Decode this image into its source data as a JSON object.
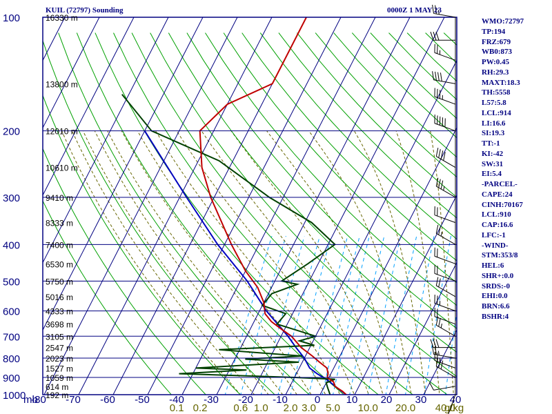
{
  "title_left": "KUIL (72797) Sounding",
  "title_right": "0000Z  1 MAY 23",
  "stats": [
    "WMO:72797",
    "TP:194",
    "FRZ:679",
    "WB0:873",
    "PW:0.45",
    "RH:29.3",
    "MAXT:18.3",
    "TH:5558",
    "L57:5.8",
    "LCL:914",
    "LI:16.6",
    "SI:19.3",
    "TT:-1",
    "KI:-42",
    "SW:31",
    "EI:5.4",
    "-PARCEL-",
    "CAPE:24",
    "CINH:70167",
    "LCL:910",
    "CAP:16.6",
    "LFC:-1",
    "-WIND-",
    "STM:353/8",
    "HEL:6",
    "SHR+:0.0",
    "SRDS:-0",
    "EHI:0.0",
    "BRN:6.6",
    "BSHR:4"
  ],
  "colors": {
    "frame": "#000080",
    "isotherm": "#000080",
    "dry_adiabat": "#00a000",
    "moist_adiabat": "#666600",
    "mixing_ratio": "#00a0ff",
    "temperature": "#c00000",
    "dewpoint": "#004000",
    "parcel": "#0000c0",
    "wind": "#000000",
    "mixlabel": "#666600"
  },
  "chart_data": {
    "type": "skew-t",
    "y_axis": {
      "label": "mb",
      "scale": "log",
      "range": [
        1000,
        100
      ],
      "ticks": [
        100,
        200,
        300,
        400,
        500,
        600,
        700,
        800,
        900,
        1000
      ]
    },
    "x_axis": {
      "unit": "C",
      "range": [
        -80,
        40
      ],
      "ticks": [
        -80,
        -70,
        -60,
        -50,
        -40,
        -30,
        -20,
        -10,
        0,
        10,
        20,
        30,
        40
      ]
    },
    "height_labels": [
      {
        "p": 100,
        "text": "16330 m"
      },
      {
        "p": 150,
        "text": "13800 m"
      },
      {
        "p": 200,
        "text": "12010 m"
      },
      {
        "p": 250,
        "text": "10610 m"
      },
      {
        "p": 300,
        "text": "9410 m"
      },
      {
        "p": 350,
        "text": "8333 m"
      },
      {
        "p": 400,
        "text": "7400 m"
      },
      {
        "p": 450,
        "text": "6530 m"
      },
      {
        "p": 500,
        "text": "5750 m"
      },
      {
        "p": 550,
        "text": "5016 m"
      },
      {
        "p": 600,
        "text": "4333 m"
      },
      {
        "p": 650,
        "text": "3698 m"
      },
      {
        "p": 700,
        "text": "3105 m"
      },
      {
        "p": 750,
        "text": "2547 m"
      },
      {
        "p": 800,
        "text": "2023 m"
      },
      {
        "p": 850,
        "text": "1527 m"
      },
      {
        "p": 900,
        "text": "1059 m"
      },
      {
        "p": 950,
        "text": "614 m"
      },
      {
        "p": 1000,
        "text": "192 m"
      }
    ],
    "mixing_ratio_labels": [
      {
        "x": 0.1,
        "text": "0.1"
      },
      {
        "x": 0.2,
        "text": "0.2"
      },
      {
        "x": 0.6,
        "text": "0.6"
      },
      {
        "x": 1.0,
        "text": "1.0"
      },
      {
        "x": 2.0,
        "text": "2.0"
      },
      {
        "x": 3.0,
        "text": "3.0"
      },
      {
        "x": 5.0,
        "text": "5.0"
      },
      {
        "x": 10.0,
        "text": "10.0"
      },
      {
        "x": 20.0,
        "text": "20.0"
      },
      {
        "x": 40.0,
        "text": "40.0"
      }
    ],
    "mixing_ratio_unit": "g/kg",
    "temperature": [
      [
        1006,
        8
      ],
      [
        980,
        6
      ],
      [
        950,
        3
      ],
      [
        925,
        2
      ],
      [
        900,
        -0.5
      ],
      [
        880,
        -0.8
      ],
      [
        850,
        -2
      ],
      [
        820,
        -5
      ],
      [
        790,
        -8
      ],
      [
        750,
        -12.5
      ],
      [
        700,
        -17
      ],
      [
        670,
        -21
      ],
      [
        640,
        -25
      ],
      [
        610,
        -28
      ],
      [
        570,
        -30
      ],
      [
        520,
        -34
      ],
      [
        470,
        -40
      ],
      [
        400,
        -48
      ],
      [
        300,
        -61
      ],
      [
        250,
        -68
      ],
      [
        200,
        -74
      ],
      [
        170,
        -70
      ],
      [
        150,
        -60
      ],
      [
        100,
        -60
      ]
    ],
    "dewpoint": [
      [
        1003,
        3
      ],
      [
        955,
        1
      ],
      [
        930,
        0
      ],
      [
        910,
        2
      ],
      [
        900,
        -10
      ],
      [
        880,
        -44
      ],
      [
        860,
        -25
      ],
      [
        850,
        -40
      ],
      [
        820,
        -11
      ],
      [
        805,
        -27
      ],
      [
        790,
        -11
      ],
      [
        760,
        -36
      ],
      [
        740,
        -9
      ],
      [
        720,
        -14
      ],
      [
        700,
        -10
      ],
      [
        680,
        -15
      ],
      [
        650,
        -23
      ],
      [
        610,
        -22
      ],
      [
        580,
        -30
      ],
      [
        540,
        -29
      ],
      [
        510,
        -23
      ],
      [
        500,
        -28
      ],
      [
        450,
        -23
      ],
      [
        400,
        -18
      ],
      [
        350,
        -28
      ],
      [
        300,
        -44
      ],
      [
        240,
        -64
      ],
      [
        200,
        -88
      ],
      [
        160,
        -102
      ]
    ],
    "parcel": [
      [
        1006,
        8
      ],
      [
        960,
        4
      ],
      [
        915,
        0
      ],
      [
        880,
        -4
      ],
      [
        850,
        -7
      ],
      [
        800,
        -10
      ],
      [
        750,
        -14
      ],
      [
        700,
        -18
      ],
      [
        600,
        -28
      ],
      [
        500,
        -38
      ],
      [
        400,
        -52
      ],
      [
        300,
        -68
      ],
      [
        200,
        -90
      ]
    ],
    "wind_barbs": [
      {
        "p": 1000,
        "dir": 200,
        "spd": 5
      },
      {
        "p": 950,
        "dir": 260,
        "spd": 10
      },
      {
        "p": 900,
        "dir": 300,
        "spd": 30
      },
      {
        "p": 850,
        "dir": 290,
        "spd": 25
      },
      {
        "p": 800,
        "dir": 280,
        "spd": 25
      },
      {
        "p": 750,
        "dir": 270,
        "spd": 30
      },
      {
        "p": 700,
        "dir": 300,
        "spd": 25
      },
      {
        "p": 650,
        "dir": 290,
        "spd": 20
      },
      {
        "p": 600,
        "dir": 290,
        "spd": 25
      },
      {
        "p": 550,
        "dir": 300,
        "spd": 20
      },
      {
        "p": 500,
        "dir": 290,
        "spd": 20
      },
      {
        "p": 450,
        "dir": 290,
        "spd": 20
      },
      {
        "p": 400,
        "dir": 300,
        "spd": 25
      },
      {
        "p": 350,
        "dir": 290,
        "spd": 20
      },
      {
        "p": 300,
        "dir": 300,
        "spd": 35
      },
      {
        "p": 250,
        "dir": 300,
        "spd": 40
      },
      {
        "p": 200,
        "dir": 290,
        "spd": 50
      },
      {
        "p": 170,
        "dir": 290,
        "spd": 35
      },
      {
        "p": 150,
        "dir": 280,
        "spd": 40
      },
      {
        "p": 130,
        "dir": 290,
        "spd": 25
      },
      {
        "p": 115,
        "dir": 270,
        "spd": 30
      },
      {
        "p": 100,
        "dir": 280,
        "spd": 25
      }
    ]
  }
}
